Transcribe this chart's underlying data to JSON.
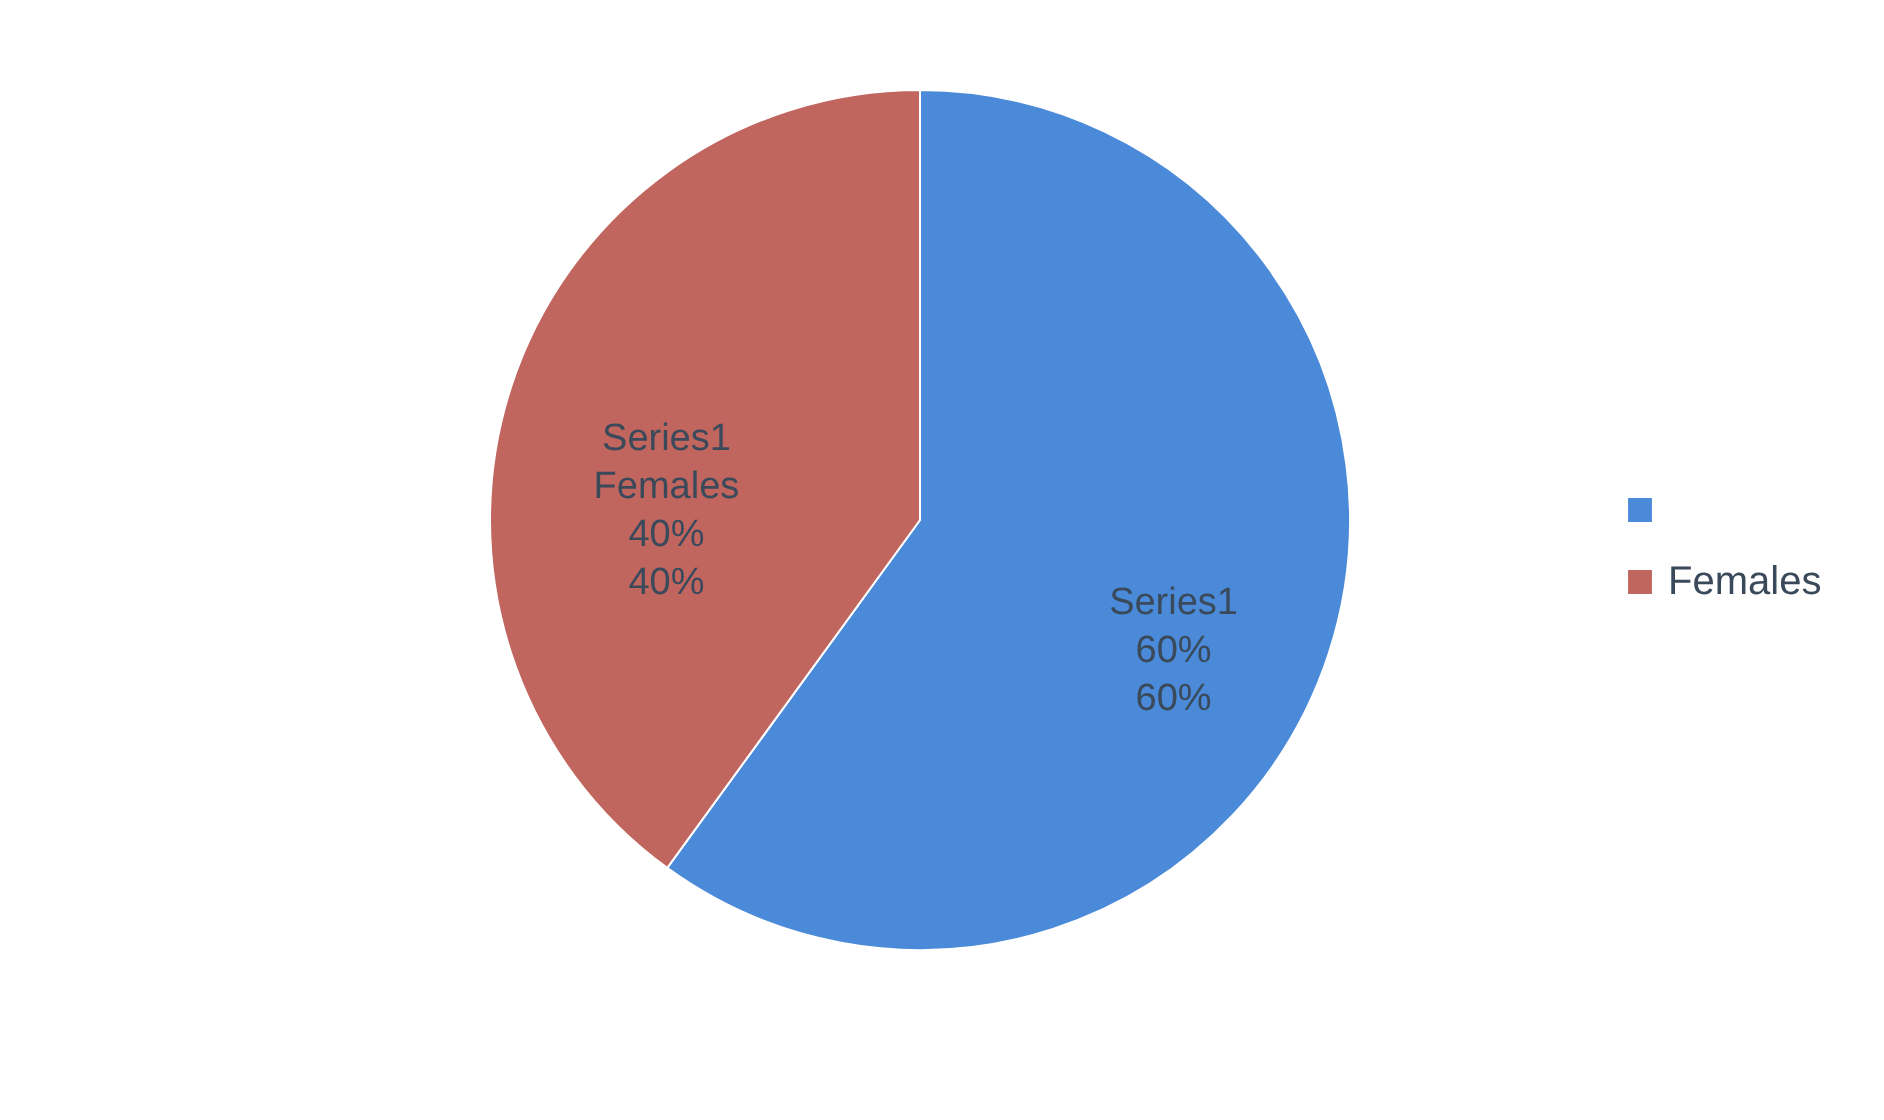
{
  "chart_data": {
    "type": "pie",
    "categories": [
      null,
      "Females"
    ],
    "values": [
      60,
      40
    ],
    "colors": [
      "#4a8ad9",
      "#c1655f"
    ],
    "value_labels": [
      "Series1\n\n60%\n60%",
      "Series1\nFemales\n40%\n40%"
    ],
    "legend": "right"
  }
}
